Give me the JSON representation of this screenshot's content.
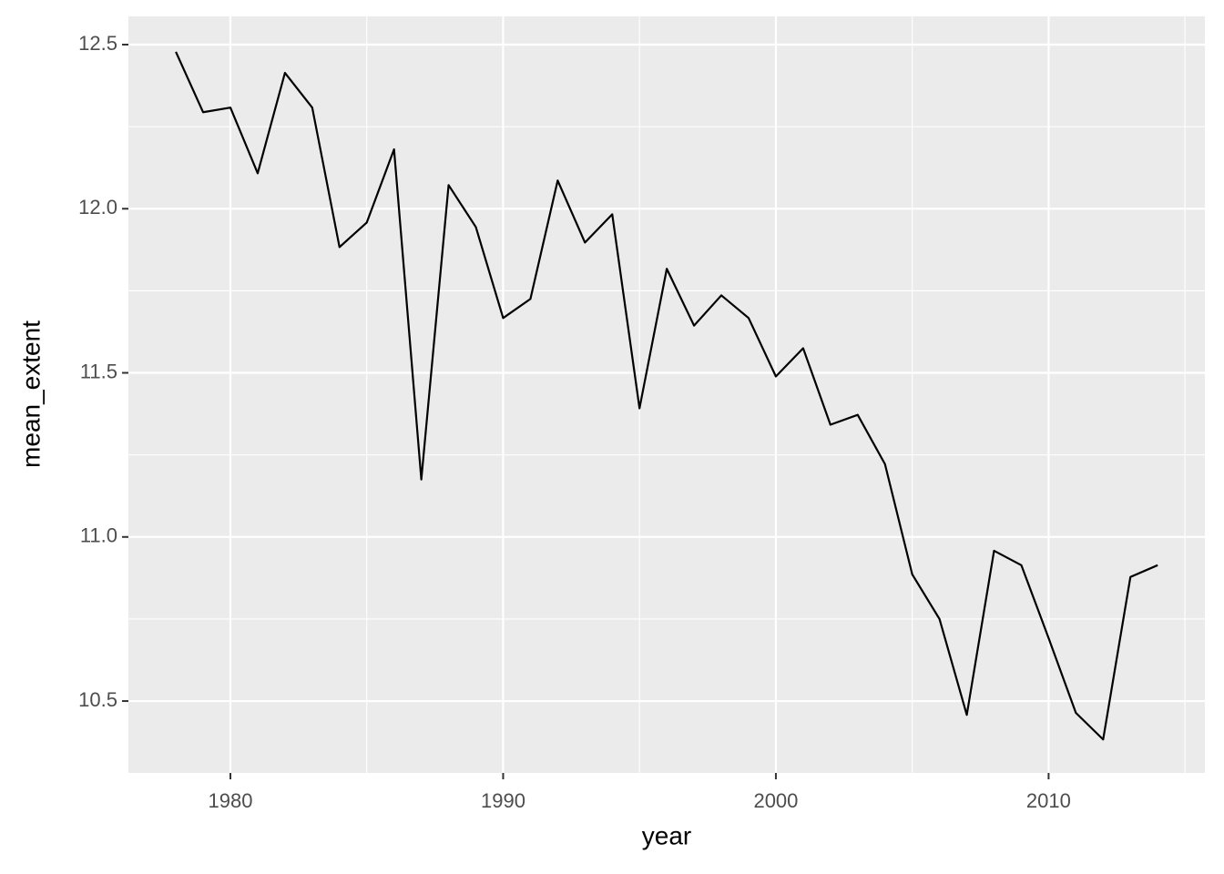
{
  "chart_data": {
    "type": "line",
    "x_label": "year",
    "y_label": "mean_extent",
    "x": [
      1978,
      1979,
      1980,
      1981,
      1982,
      1983,
      1984,
      1985,
      1986,
      1987,
      1988,
      1989,
      1990,
      1991,
      1992,
      1993,
      1994,
      1995,
      1996,
      1997,
      1998,
      1999,
      2000,
      2001,
      2002,
      2003,
      2004,
      2005,
      2006,
      2007,
      2008,
      2009,
      2010,
      2011,
      2012,
      2013,
      2014
    ],
    "series": [
      {
        "color": "#000000",
        "values": [
          12.478,
          12.294,
          12.308,
          12.108,
          12.414,
          12.308,
          11.883,
          11.958,
          12.181,
          11.175,
          12.072,
          11.944,
          11.667,
          11.725,
          12.086,
          11.897,
          11.983,
          11.392,
          11.817,
          11.644,
          11.736,
          11.667,
          11.489,
          11.575,
          11.342,
          11.372,
          11.222,
          10.886,
          10.75,
          10.458,
          10.958,
          10.914,
          10.692,
          10.464,
          10.383,
          10.878,
          10.914
        ]
      }
    ],
    "xlim": [
      1976.26,
      2015.73
    ],
    "ylim": [
      10.281,
      12.586
    ],
    "xticks": [
      1980,
      1990,
      2000,
      2010
    ],
    "yticks": [
      {
        "value": 10.5,
        "label": "10.5"
      },
      {
        "value": 11,
        "label": "11.0"
      },
      {
        "value": 11.5,
        "label": "11.5"
      },
      {
        "value": 12,
        "label": "12.0"
      },
      {
        "value": 12.5,
        "label": "12.5"
      }
    ],
    "x_minor_grid": [
      1975,
      1985,
      1995,
      2005,
      2015
    ],
    "y_minor_grid": [
      10.75,
      11.25,
      11.75,
      12.25
    ],
    "grid": true,
    "panel_color": "#ebebeb"
  }
}
